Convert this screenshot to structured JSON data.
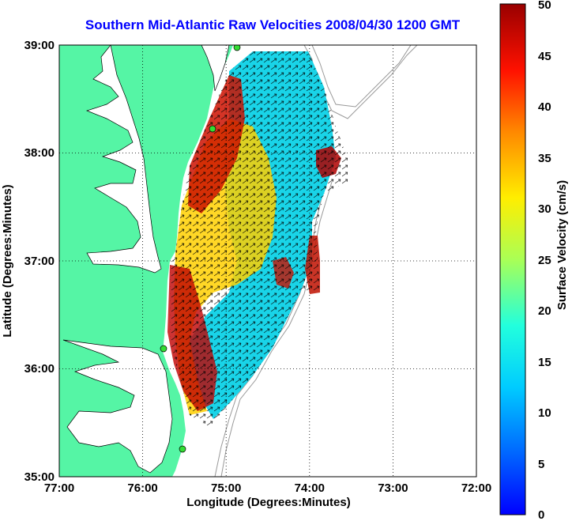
{
  "title": "Southern Mid-Atlantic Raw Velocities 2008/04/30 1200 GMT",
  "xlabel": "Longitude (Degrees:Minutes)",
  "ylabel": "Latitude (Degrees:Minutes)",
  "x_ticks": [
    "77:00",
    "76:00",
    "75:00",
    "74:00",
    "73:00",
    "72:00"
  ],
  "y_ticks": [
    "39:00",
    "38:00",
    "37:00",
    "36:00",
    "35:00"
  ],
  "colorbar": {
    "label": "Surface Velocity (cm/s)",
    "ticks": [
      "50",
      "45",
      "40",
      "35",
      "30",
      "25",
      "20",
      "15",
      "10",
      "5",
      "0"
    ],
    "range": [
      0,
      50
    ]
  },
  "colors": {
    "land": "#55f5a5",
    "water": "#ffffff",
    "title": "#0000ff",
    "station": "#33dd33"
  }
}
